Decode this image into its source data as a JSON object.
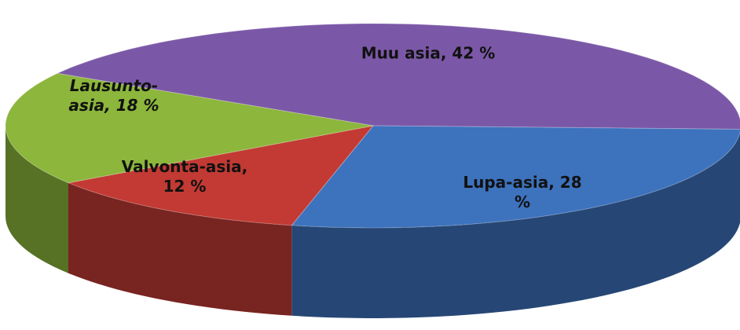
{
  "chart_data": {
    "type": "pie3d",
    "values": [
      42,
      28,
      12,
      18
    ],
    "value_labels": [
      "Muu asia, 42 %",
      "Lupa-asia, 28 %",
      "Valvonta-asia, 12 %",
      "Lausunto-asia, 18 %"
    ],
    "colors": [
      "#7b58a7",
      "#3d72bd",
      "#c23a33",
      "#8cb63c"
    ]
  }
}
